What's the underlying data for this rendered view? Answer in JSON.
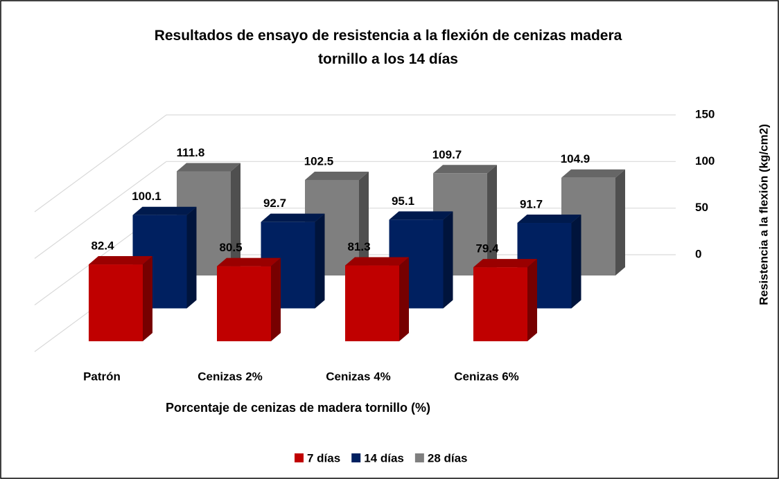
{
  "chart_data": {
    "type": "bar3d",
    "title": "Resultados de ensayo de resistencia a la flexión de cenizas madera tornillo a los 14 días",
    "x_label": "Porcentaje de cenizas de madera tornillo (%)",
    "y_label": "Resistencia a la flexión (kg/cm2)",
    "categories": [
      "Patrón",
      "Cenizas 2%",
      "Cenizas 4%",
      "Cenizas 6%"
    ],
    "series": [
      {
        "name": "7 días",
        "color": "#c00000",
        "values": [
          82.4,
          80.5,
          81.3,
          79.4
        ]
      },
      {
        "name": "14 días",
        "color": "#002060",
        "values": [
          100.1,
          92.7,
          95.1,
          91.7
        ]
      },
      {
        "name": "28 días",
        "color": "#7f7f7f",
        "values": [
          111.8,
          102.5,
          109.7,
          104.9
        ]
      }
    ],
    "ylim": [
      0,
      150
    ],
    "yticks": [
      0,
      50,
      100,
      150
    ],
    "grid": true,
    "legend": "bottom"
  }
}
